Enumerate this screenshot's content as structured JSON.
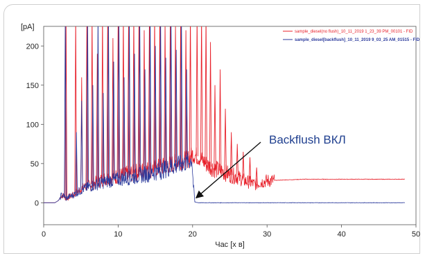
{
  "chart_data": {
    "type": "line",
    "y_unit_label": "[pA]",
    "xlabel": "Час [х в]",
    "xlim": [
      0,
      50
    ],
    "ylim": [
      -28,
      225
    ],
    "x_ticks": [
      0,
      10,
      20,
      30,
      40,
      50
    ],
    "y_ticks": [
      0,
      50,
      100,
      150,
      200
    ],
    "grid": false,
    "legend_position": "top-right",
    "annotation": {
      "text": "Backflush ВКЛ",
      "x": 20.3,
      "y": 1
    },
    "series": [
      {
        "name": "sample_diesel(no flush)_10_11_2019 1_23_39 PM_00101 - FID",
        "color": "#e8202a",
        "x": [
          0,
          1.5,
          2.0,
          2.4,
          2.8,
          3.0,
          3.5,
          4,
          5,
          6,
          8,
          10,
          12,
          14,
          16,
          18,
          19.5,
          20,
          20.5,
          21,
          22,
          23,
          24,
          25,
          26,
          27,
          28,
          28.5,
          29,
          30,
          32,
          35,
          40,
          45,
          48.5
        ],
        "y": [
          0,
          0,
          3,
          10,
          8,
          5,
          8,
          10,
          18,
          22,
          30,
          34,
          38,
          42,
          46,
          52,
          56,
          62,
          60,
          57,
          48,
          43,
          40,
          36,
          33,
          28,
          25,
          23,
          26,
          28,
          29,
          30,
          30,
          30,
          30
        ],
        "peaks": [
          [
            3.0,
            240
          ],
          [
            4.3,
            240
          ],
          [
            5.1,
            160
          ],
          [
            5.8,
            240
          ],
          [
            6.5,
            240
          ],
          [
            7.2,
            190
          ],
          [
            7.9,
            240
          ],
          [
            8.6,
            240
          ],
          [
            9.3,
            210
          ],
          [
            10.0,
            240
          ],
          [
            10.7,
            240
          ],
          [
            11.4,
            230
          ],
          [
            12.1,
            240
          ],
          [
            12.8,
            240
          ],
          [
            13.5,
            220
          ],
          [
            14.2,
            240
          ],
          [
            14.9,
            240
          ],
          [
            15.6,
            240
          ],
          [
            16.3,
            230
          ],
          [
            17.0,
            240
          ],
          [
            17.7,
            225
          ],
          [
            18.4,
            240
          ],
          [
            19.1,
            220
          ],
          [
            19.7,
            240
          ],
          [
            20.6,
            240
          ],
          [
            21.2,
            240
          ],
          [
            21.8,
            240
          ],
          [
            22.4,
            205
          ],
          [
            23.0,
            150
          ],
          [
            23.7,
            170
          ],
          [
            24.4,
            120
          ],
          [
            25.2,
            90
          ],
          [
            26.0,
            75
          ],
          [
            26.8,
            65
          ],
          [
            27.7,
            58
          ],
          [
            28.6,
            45
          ]
        ]
      },
      {
        "name": "sample_diesel[backflush]_10_11_2019 9_03_25 AM_01515 - FID",
        "color": "#2b3a9c",
        "x": [
          0,
          1.5,
          2.0,
          2.4,
          2.8,
          3.0,
          3.5,
          4,
          5,
          6,
          8,
          10,
          12,
          14,
          16,
          18,
          19.5,
          19.9,
          20.1,
          20.3,
          20.8,
          22,
          25,
          30,
          40,
          48.5
        ],
        "y": [
          0,
          0,
          3,
          10,
          8,
          5,
          8,
          10,
          16,
          20,
          26,
          30,
          33,
          37,
          42,
          48,
          52,
          56,
          22,
          1,
          0,
          0,
          0,
          0,
          0,
          0
        ],
        "peaks": [
          [
            2.9,
            240
          ],
          [
            4.4,
            90
          ],
          [
            5.1,
            130
          ],
          [
            5.9,
            240
          ],
          [
            6.6,
            150
          ],
          [
            7.3,
            240
          ],
          [
            8.0,
            140
          ],
          [
            8.7,
            240
          ],
          [
            9.4,
            180
          ],
          [
            10.1,
            240
          ],
          [
            10.8,
            160
          ],
          [
            11.5,
            240
          ],
          [
            12.2,
            190
          ],
          [
            12.9,
            240
          ],
          [
            13.6,
            170
          ],
          [
            14.3,
            240
          ],
          [
            15.0,
            200
          ],
          [
            15.7,
            240
          ],
          [
            16.4,
            185
          ],
          [
            17.1,
            240
          ],
          [
            17.8,
            195
          ],
          [
            18.5,
            240
          ],
          [
            19.2,
            170
          ]
        ]
      }
    ]
  }
}
